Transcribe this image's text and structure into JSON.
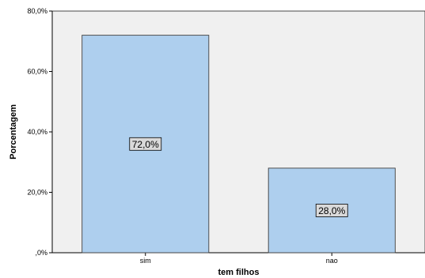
{
  "chart_data": {
    "type": "bar",
    "categories": [
      "sim",
      "nao"
    ],
    "values": [
      72.0,
      28.0
    ],
    "data_labels": [
      "72,0%",
      "28,0%"
    ],
    "xlabel": "tem filhos",
    "ylabel": "Porcentagem",
    "ylim": [
      0,
      80
    ],
    "yticks": [
      0,
      20,
      40,
      60,
      80
    ],
    "ytick_labels": [
      ",0%",
      "20,0%",
      "40,0%",
      "60,0%",
      "80,0%"
    ],
    "grid": false,
    "legend": "none",
    "colors": {
      "plot_background": "#f0f0f0",
      "bar_fill": "#aecfee",
      "bar_stroke": "#404040",
      "label_box_fill": "#d9d9d9"
    }
  }
}
